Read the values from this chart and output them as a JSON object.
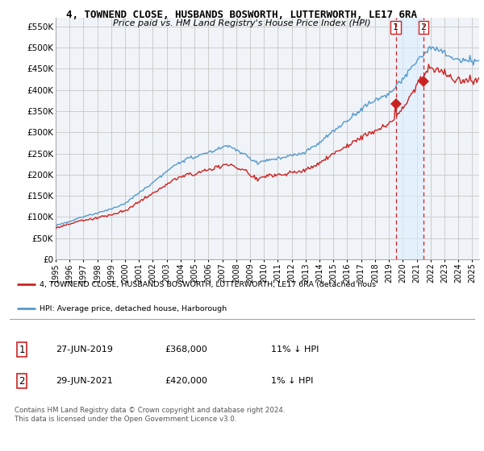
{
  "title": "4, TOWNEND CLOSE, HUSBANDS BOSWORTH, LUTTERWORTH, LE17 6RA",
  "subtitle": "Price paid vs. HM Land Registry's House Price Index (HPI)",
  "ylim": [
    0,
    570000
  ],
  "yticks": [
    0,
    50000,
    100000,
    150000,
    200000,
    250000,
    300000,
    350000,
    400000,
    450000,
    500000,
    550000
  ],
  "line1_color": "#cc2222",
  "line2_color": "#5599cc",
  "point1_date": 2019.49,
  "point1_value": 368000,
  "point2_date": 2021.49,
  "point2_value": 420000,
  "legend1_text": "4, TOWNEND CLOSE, HUSBANDS BOSWORTH, LUTTERWORTH, LE17 6RA (detached hous",
  "legend2_text": "HPI: Average price, detached house, Harborough",
  "table_row1": [
    "1",
    "27-JUN-2019",
    "£368,000",
    "11% ↓ HPI"
  ],
  "table_row2": [
    "2",
    "29-JUN-2021",
    "£420,000",
    "1% ↓ HPI"
  ],
  "footnote": "Contains HM Land Registry data © Crown copyright and database right 2024.\nThis data is licensed under the Open Government Licence v3.0.",
  "background_color": "#ffffff",
  "grid_color": "#cccccc",
  "vline_color": "#cc2222",
  "shade_color": "#ddeeff"
}
